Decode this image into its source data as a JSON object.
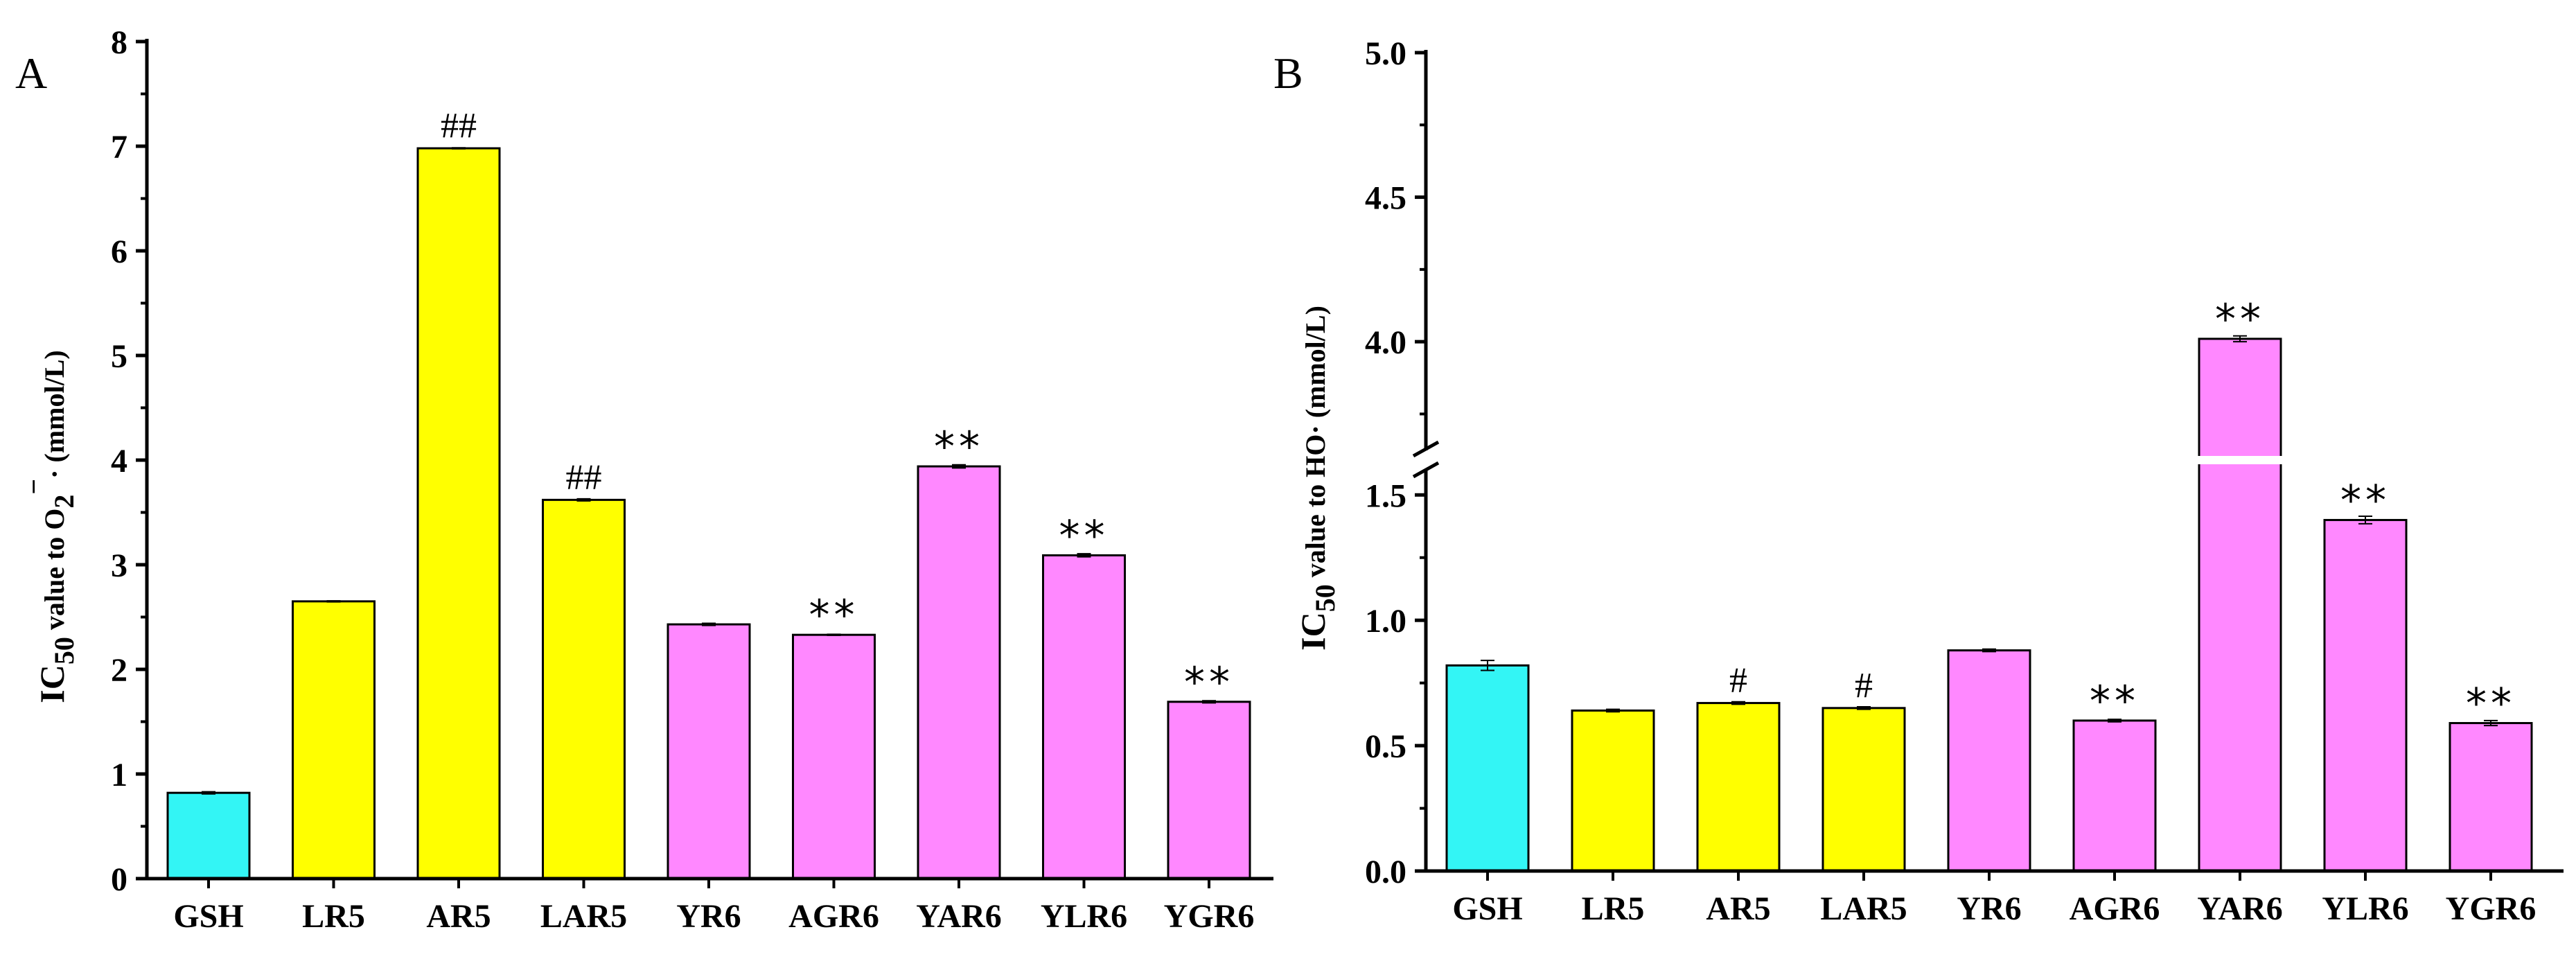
{
  "chart_data": [
    {
      "panel": "A",
      "type": "bar",
      "categories": [
        "GSH",
        "LR5",
        "AR5",
        "LAR5",
        "YR6",
        "AGR6",
        "YAR6",
        "YLR6",
        "YGR6"
      ],
      "values": [
        0.82,
        2.65,
        6.98,
        3.62,
        2.43,
        2.33,
        3.94,
        3.09,
        1.69
      ],
      "errors": [
        0.01,
        0.005,
        0.005,
        0.01,
        0.01,
        0.005,
        0.015,
        0.015,
        0.01
      ],
      "annotations": [
        "",
        "",
        "##",
        "##",
        "",
        "**",
        "**",
        "**",
        "**"
      ],
      "ylabel": {
        "main": "IC",
        "sub": "50",
        "mid": " value to O",
        "sub2": "2",
        "sup": "−",
        "end": "· (mmol/L)"
      },
      "ylim": [
        0,
        8
      ],
      "yticks": [
        0,
        1,
        2,
        3,
        4,
        5,
        6,
        7,
        8
      ],
      "yticklabels": [
        "0",
        "1",
        "2",
        "3",
        "4",
        "5",
        "6",
        "7",
        "8"
      ]
    },
    {
      "panel": "B",
      "type": "bar",
      "categories": [
        "GSH",
        "LR5",
        "AR5",
        "LAR5",
        "YR6",
        "AGR6",
        "YAR6",
        "YLR6",
        "YGR6"
      ],
      "values": [
        0.82,
        0.64,
        0.67,
        0.65,
        0.88,
        0.6,
        4.01,
        1.4,
        0.59
      ],
      "errors": [
        0.02,
        0.005,
        0.005,
        0.005,
        0.005,
        0.005,
        0.01,
        0.015,
        0.01
      ],
      "annotations": [
        "",
        "",
        "#",
        "#",
        "",
        "**",
        "**",
        "**",
        "**"
      ],
      "ylabel": {
        "main": "IC",
        "sub": "50",
        "end": " value to HO· (mmol/L)"
      },
      "axis_break": [
        1.65,
        3.6
      ],
      "ylim_lower": [
        0,
        1.65
      ],
      "ylim_upper": [
        3.6,
        5.0
      ],
      "yticks": [
        0,
        0.5,
        1.0,
        1.5,
        4.0,
        4.5,
        5.0
      ],
      "yticklabels": [
        "0.0",
        "0.5",
        "1.0",
        "1.5",
        "4.0",
        "4.5",
        "5.0"
      ]
    }
  ],
  "colors": {
    "GSH": "#33f5f5",
    "peptide5": "#ffff00",
    "peptide6": "#ff88ff"
  },
  "category_color_keys": [
    "GSH",
    "peptide5",
    "peptide5",
    "peptide5",
    "peptide6",
    "peptide6",
    "peptide6",
    "peptide6",
    "peptide6"
  ]
}
